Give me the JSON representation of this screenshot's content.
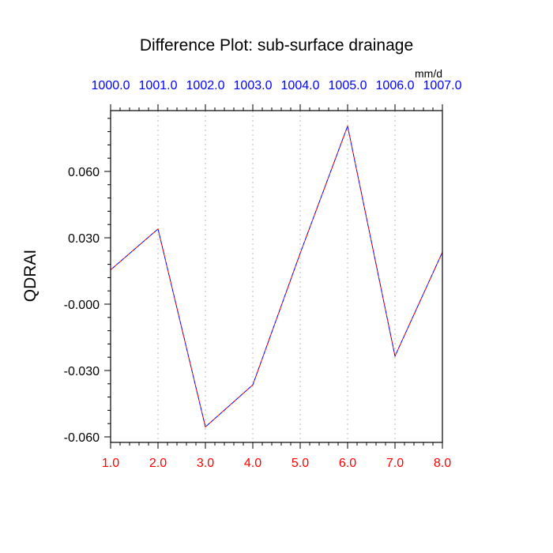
{
  "chart_data": {
    "type": "line",
    "title": "Difference Plot: sub-surface drainage",
    "units": "mm/d",
    "ylabel": "QDRAI",
    "xlabel": "",
    "xlim": [
      1.0,
      8.0
    ],
    "ylim": [
      -0.0625,
      0.0875
    ],
    "x": [
      1,
      2,
      3,
      4,
      5,
      6,
      7,
      8
    ],
    "x_tick_labels": [
      "1.0",
      "2.0",
      "3.0",
      "4.0",
      "5.0",
      "6.0",
      "7.0",
      "8.0"
    ],
    "top_tick_labels": [
      "1000.0",
      "1001.0",
      "1002.0",
      "1003.0",
      "1004.0",
      "1005.0",
      "1006.0",
      "1007.0"
    ],
    "y_ticks": [
      0.06,
      0.03,
      0.0,
      -0.03,
      -0.06
    ],
    "y_tick_labels": [
      "0.060",
      "0.030",
      "-0.000",
      "-0.030",
      "-0.060"
    ],
    "grid": "vertical dotted",
    "series": [
      {
        "values": [
          0.0155,
          0.034,
          -0.0555,
          -0.0365,
          0.023,
          0.0805,
          -0.0235,
          0.0235
        ],
        "color": "#ff0000",
        "dash": "dashed"
      },
      {
        "values": [
          0.0155,
          0.034,
          -0.0555,
          -0.0365,
          0.023,
          0.0805,
          -0.0235,
          0.0235
        ],
        "color": "#0000ff",
        "dash": "dashed"
      }
    ],
    "colors": {
      "bottom_ticks": "#ff0000",
      "top_ticks": "#0000ff",
      "axis": "#000000",
      "grid": "#bbbbbb"
    }
  }
}
